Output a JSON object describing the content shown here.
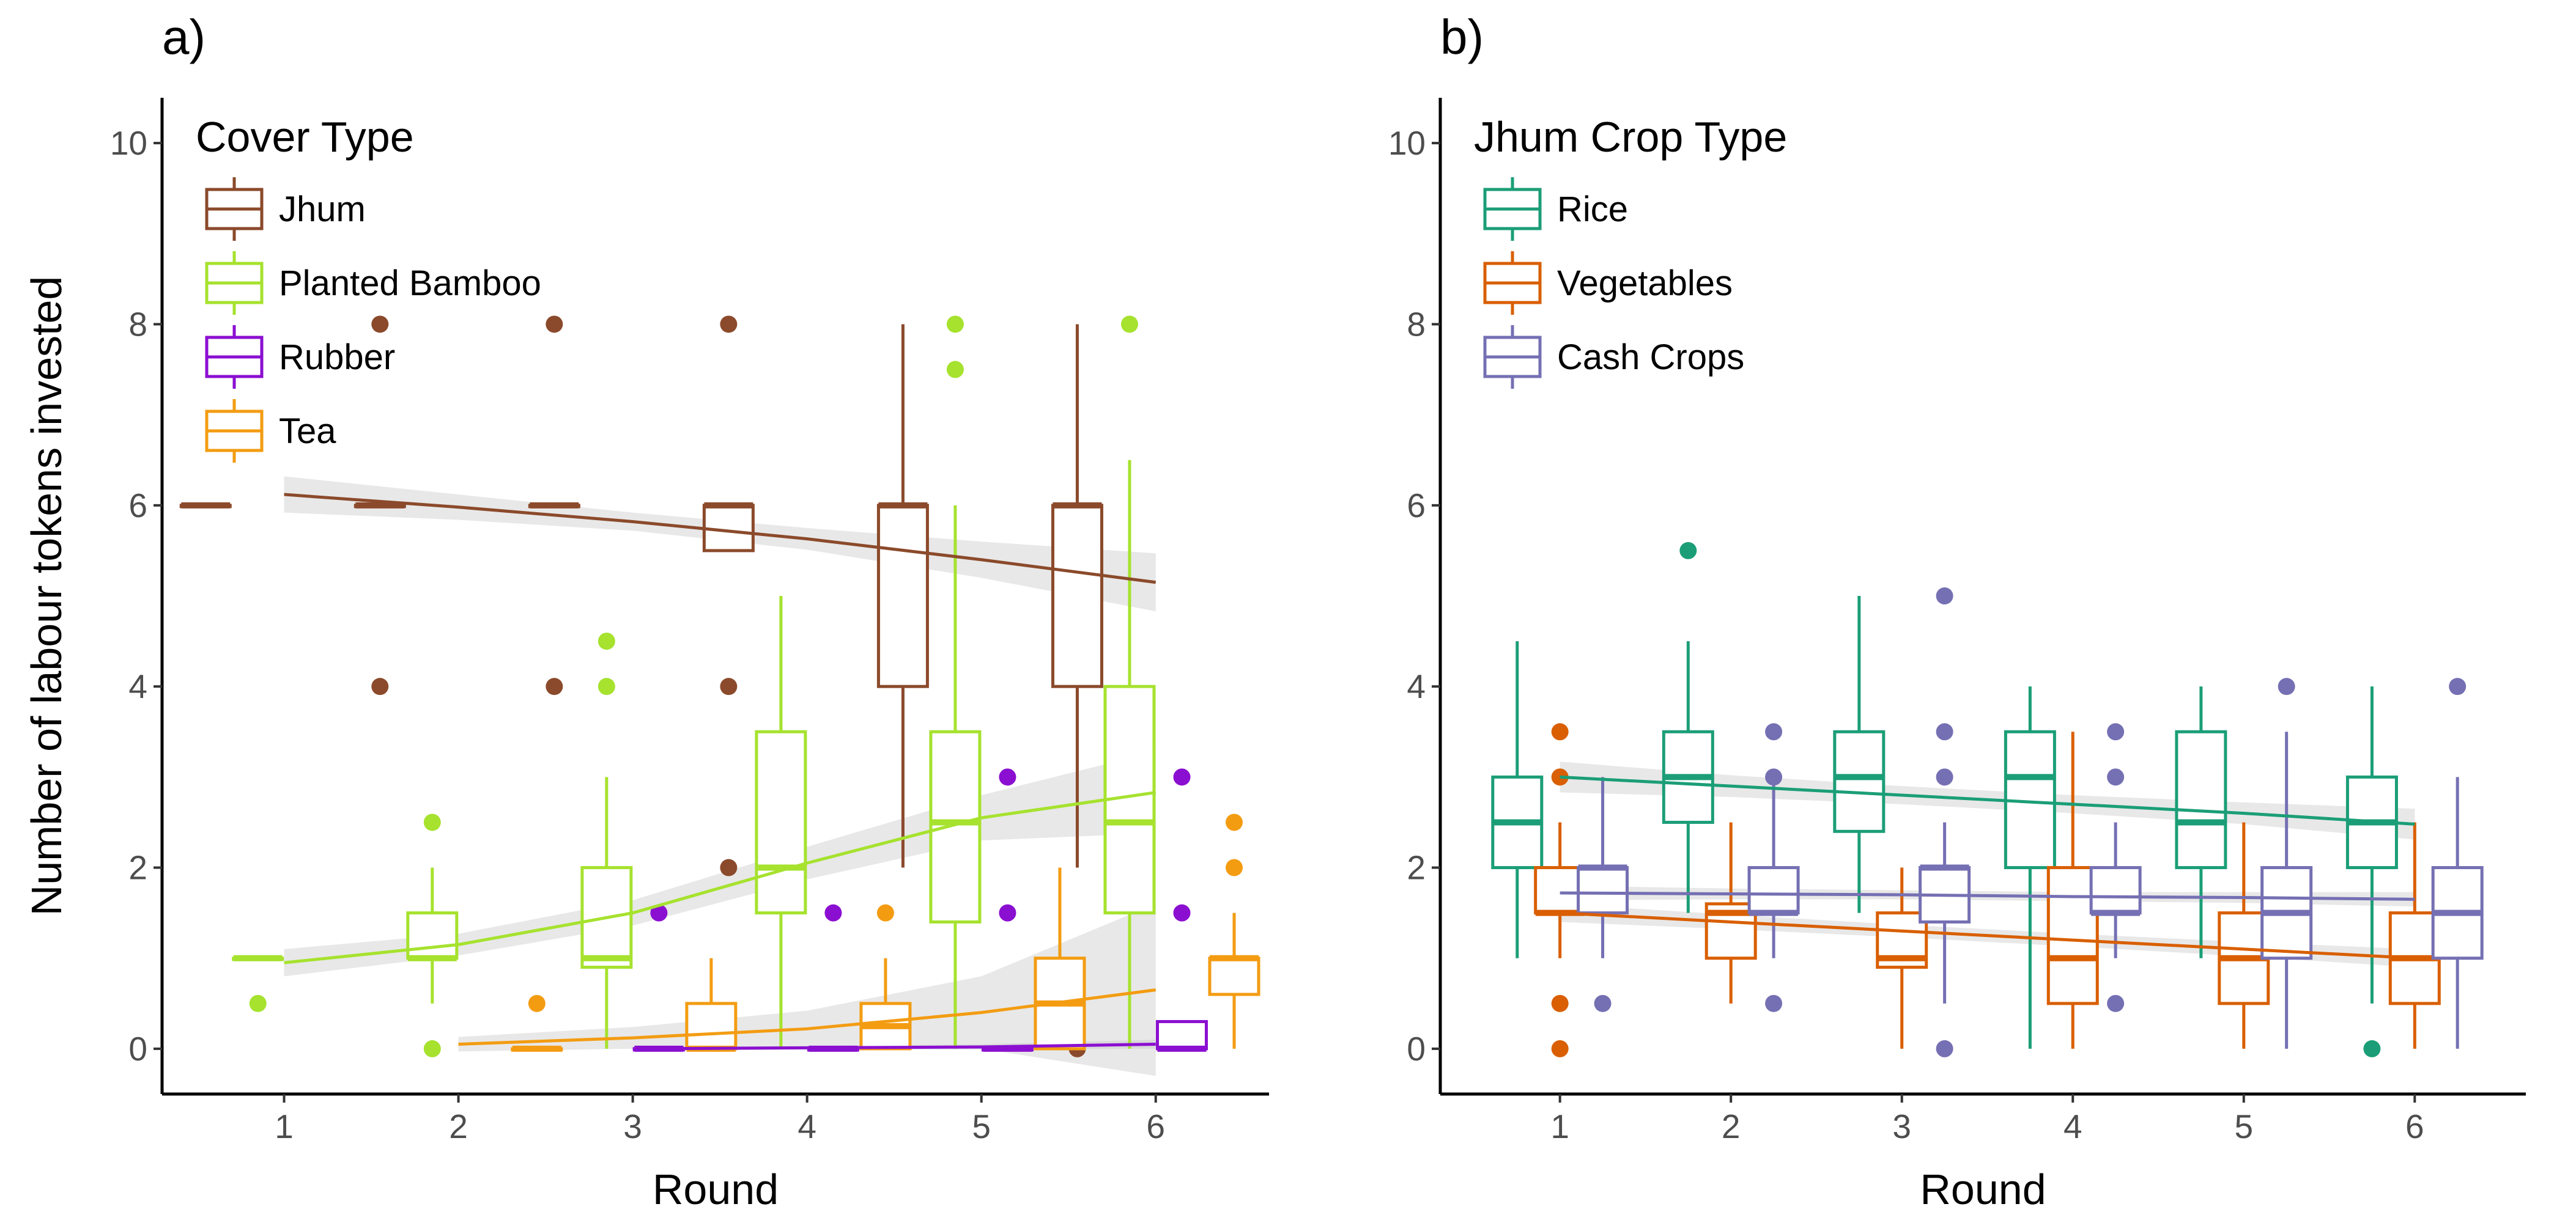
{
  "chart_data": [
    {
      "type": "box",
      "panel_label": "a)",
      "xlabel": "Round",
      "ylabel": "Number of labour tokens invested",
      "legend_title": "Cover Type",
      "legend_position": "top-left",
      "grid": false,
      "x_ticks": [
        1,
        2,
        3,
        4,
        5,
        6
      ],
      "y_ticks": [
        0,
        2,
        4,
        6,
        8,
        10
      ],
      "xlim": [
        0.3,
        6.65
      ],
      "ylim": [
        -0.5,
        10.5
      ],
      "dodge": 0.3,
      "series": [
        {
          "name": "Jhum",
          "color": "#8B4A2B",
          "boxes": [
            {
              "round": 1,
              "min": 6,
              "q1": 6,
              "median": 6,
              "q3": 6,
              "max": 6,
              "outliers": []
            },
            {
              "round": 2,
              "min": 6,
              "q1": 6,
              "median": 6,
              "q3": 6,
              "max": 6,
              "outliers": [
                4,
                8
              ]
            },
            {
              "round": 3,
              "min": 6,
              "q1": 6,
              "median": 6,
              "q3": 6,
              "max": 6,
              "outliers": [
                4,
                8
              ]
            },
            {
              "round": 4,
              "min": 5.5,
              "q1": 5.5,
              "median": 6,
              "q3": 6,
              "max": 6,
              "outliers": [
                2,
                4,
                8
              ]
            },
            {
              "round": 5,
              "min": 2,
              "q1": 4,
              "median": 6,
              "q3": 6,
              "max": 8,
              "outliers": []
            },
            {
              "round": 6,
              "min": 2,
              "q1": 4,
              "median": 6,
              "q3": 6,
              "max": 8,
              "outliers": [
                0
              ]
            }
          ],
          "trend": {
            "x": [
              1,
              2,
              3,
              4,
              5,
              6
            ],
            "y": [
              6.12,
              5.98,
              5.82,
              5.63,
              5.4,
              5.15
            ],
            "ci_halfwidth": [
              0.2,
              0.14,
              0.1,
              0.12,
              0.2,
              0.32
            ]
          }
        },
        {
          "name": "Planted Bamboo",
          "color": "#A6E22E",
          "boxes": [
            {
              "round": 1,
              "min": 1,
              "q1": 1,
              "median": 1,
              "q3": 1,
              "max": 1,
              "outliers": [
                0.5
              ]
            },
            {
              "round": 2,
              "min": 0.5,
              "q1": 1,
              "median": 1,
              "q3": 1.5,
              "max": 2,
              "outliers": [
                0,
                2.5
              ]
            },
            {
              "round": 3,
              "min": 0,
              "q1": 0.9,
              "median": 1,
              "q3": 2,
              "max": 3,
              "outliers": [
                4,
                4.5
              ]
            },
            {
              "round": 4,
              "min": 0,
              "q1": 1.5,
              "median": 2,
              "q3": 3.5,
              "max": 5,
              "outliers": []
            },
            {
              "round": 5,
              "min": 0,
              "q1": 1.4,
              "median": 2.5,
              "q3": 3.5,
              "max": 6,
              "outliers": [
                7.5,
                8
              ]
            },
            {
              "round": 6,
              "min": 0,
              "q1": 1.5,
              "median": 2.5,
              "q3": 4,
              "max": 6.5,
              "outliers": [
                8
              ]
            }
          ],
          "trend": {
            "x": [
              1,
              2,
              3,
              4,
              5,
              6
            ],
            "y": [
              0.95,
              1.15,
              1.5,
              2.05,
              2.55,
              2.83
            ],
            "ci_halfwidth": [
              0.15,
              0.12,
              0.14,
              0.18,
              0.25,
              0.45
            ]
          }
        },
        {
          "name": "Rubber",
          "color": "#8B0FD1",
          "boxes": [
            {
              "round": 3,
              "min": 0,
              "q1": 0,
              "median": 0,
              "q3": 0,
              "max": 0,
              "outliers": [
                1.5
              ]
            },
            {
              "round": 4,
              "min": 0,
              "q1": 0,
              "median": 0,
              "q3": 0,
              "max": 0,
              "outliers": [
                1.5
              ]
            },
            {
              "round": 5,
              "min": 0,
              "q1": 0,
              "median": 0,
              "q3": 0,
              "max": 0,
              "outliers": [
                1.5,
                3
              ]
            },
            {
              "round": 6,
              "min": 0,
              "q1": 0,
              "median": 0,
              "q3": 0.3,
              "max": 0.3,
              "outliers": [
                1.5,
                3
              ]
            }
          ],
          "trend": {
            "x": [
              3,
              4,
              5,
              6
            ],
            "y": [
              0.0,
              0.01,
              0.02,
              0.05
            ],
            "ci_halfwidth": [
              0.02,
              0.02,
              0.03,
              0.05
            ]
          }
        },
        {
          "name": "Tea",
          "color": "#F39C12",
          "boxes": [
            {
              "round": 2,
              "min": 0,
              "q1": 0,
              "median": 0,
              "q3": 0,
              "max": 0,
              "outliers": [
                0.5
              ]
            },
            {
              "round": 3,
              "min": 0,
              "q1": 0,
              "median": 0,
              "q3": 0.5,
              "max": 1,
              "outliers": []
            },
            {
              "round": 4,
              "min": 0,
              "q1": 0,
              "median": 0.25,
              "q3": 0.5,
              "max": 1,
              "outliers": [
                1.5
              ]
            },
            {
              "round": 5,
              "min": 0,
              "q1": 0,
              "median": 0.5,
              "q3": 1,
              "max": 2,
              "outliers": []
            },
            {
              "round": 6,
              "min": 0,
              "q1": 0.6,
              "median": 1,
              "q3": 1,
              "max": 1.5,
              "outliers": [
                2,
                2.5
              ]
            }
          ],
          "trend": {
            "x": [
              2,
              3,
              4,
              5,
              6
            ],
            "y": [
              0.05,
              0.12,
              0.22,
              0.4,
              0.65
            ],
            "ci_halfwidth": [
              0.08,
              0.12,
              0.2,
              0.4,
              0.95
            ]
          }
        }
      ]
    },
    {
      "type": "box",
      "panel_label": "b)",
      "xlabel": "Round",
      "ylabel": "",
      "legend_title": "Jhum Crop Type",
      "legend_position": "top-left",
      "grid": false,
      "x_ticks": [
        1,
        2,
        3,
        4,
        5,
        6
      ],
      "y_ticks": [
        0,
        2,
        4,
        6,
        8,
        10
      ],
      "xlim": [
        0.3,
        6.65
      ],
      "ylim": [
        -0.5,
        10.5
      ],
      "dodge": 0.25,
      "series": [
        {
          "name": "Rice",
          "color": "#1B9E77",
          "boxes": [
            {
              "round": 1,
              "min": 1,
              "q1": 2,
              "median": 2.5,
              "q3": 3,
              "max": 4.5,
              "outliers": []
            },
            {
              "round": 2,
              "min": 1.5,
              "q1": 2.5,
              "median": 3,
              "q3": 3.5,
              "max": 4.5,
              "outliers": [
                5.5
              ]
            },
            {
              "round": 3,
              "min": 1.5,
              "q1": 2.4,
              "median": 3,
              "q3": 3.5,
              "max": 5,
              "outliers": []
            },
            {
              "round": 4,
              "min": 0,
              "q1": 2,
              "median": 3,
              "q3": 3.5,
              "max": 4,
              "outliers": []
            },
            {
              "round": 5,
              "min": 1,
              "q1": 2,
              "median": 2.5,
              "q3": 3.5,
              "max": 4,
              "outliers": []
            },
            {
              "round": 6,
              "min": 0.5,
              "q1": 2,
              "median": 2.5,
              "q3": 3,
              "max": 4,
              "outliers": [
                0
              ]
            }
          ],
          "trend": {
            "x": [
              1,
              2,
              3,
              4,
              5,
              6
            ],
            "y": [
              3.0,
              2.9,
              2.8,
              2.7,
              2.6,
              2.48
            ],
            "ci_halfwidth": [
              0.17,
              0.12,
              0.1,
              0.1,
              0.12,
              0.17
            ]
          }
        },
        {
          "name": "Vegetables",
          "color": "#D95F02",
          "boxes": [
            {
              "round": 1,
              "min": 1,
              "q1": 1.5,
              "median": 1.5,
              "q3": 2,
              "max": 2.5,
              "outliers": [
                0,
                0.5,
                3,
                3.5
              ]
            },
            {
              "round": 2,
              "min": 0.5,
              "q1": 1,
              "median": 1.5,
              "q3": 1.6,
              "max": 2.5,
              "outliers": []
            },
            {
              "round": 3,
              "min": 0,
              "q1": 0.9,
              "median": 1,
              "q3": 1.5,
              "max": 2,
              "outliers": []
            },
            {
              "round": 4,
              "min": 0,
              "q1": 0.5,
              "median": 1,
              "q3": 2,
              "max": 3.5,
              "outliers": []
            },
            {
              "round": 5,
              "min": 0,
              "q1": 0.5,
              "median": 1,
              "q3": 1.5,
              "max": 2.5,
              "outliers": []
            },
            {
              "round": 6,
              "min": 0,
              "q1": 0.5,
              "median": 1,
              "q3": 1.5,
              "max": 2.5,
              "outliers": []
            }
          ],
          "trend": {
            "x": [
              1,
              2,
              3,
              4,
              5,
              6
            ],
            "y": [
              1.5,
              1.4,
              1.3,
              1.2,
              1.1,
              1.0
            ],
            "ci_halfwidth": [
              0.1,
              0.08,
              0.07,
              0.07,
              0.08,
              0.1
            ]
          }
        },
        {
          "name": "Cash Crops",
          "color": "#7570B3",
          "boxes": [
            {
              "round": 1,
              "min": 1,
              "q1": 1.5,
              "median": 2,
              "q3": 2,
              "max": 3,
              "outliers": [
                0.5
              ]
            },
            {
              "round": 2,
              "min": 1,
              "q1": 1.5,
              "median": 1.5,
              "q3": 2,
              "max": 3,
              "outliers": [
                0.5,
                3,
                3.5
              ]
            },
            {
              "round": 3,
              "min": 0.5,
              "q1": 1.4,
              "median": 2,
              "q3": 2,
              "max": 2.5,
              "outliers": [
                0,
                3,
                3.5,
                5
              ]
            },
            {
              "round": 4,
              "min": 1,
              "q1": 1.5,
              "median": 1.5,
              "q3": 2,
              "max": 2.5,
              "outliers": [
                0.5,
                3,
                3.5
              ]
            },
            {
              "round": 5,
              "min": 0,
              "q1": 1,
              "median": 1.5,
              "q3": 2,
              "max": 3.5,
              "outliers": [
                4
              ]
            },
            {
              "round": 6,
              "min": 0,
              "q1": 1,
              "median": 1.5,
              "q3": 2,
              "max": 3,
              "outliers": [
                4
              ]
            }
          ],
          "trend": {
            "x": [
              1,
              2,
              3,
              4,
              5,
              6
            ],
            "y": [
              1.72,
              1.71,
              1.7,
              1.68,
              1.67,
              1.65
            ],
            "ci_halfwidth": [
              0.08,
              0.06,
              0.05,
              0.05,
              0.06,
              0.08
            ]
          }
        }
      ]
    }
  ]
}
